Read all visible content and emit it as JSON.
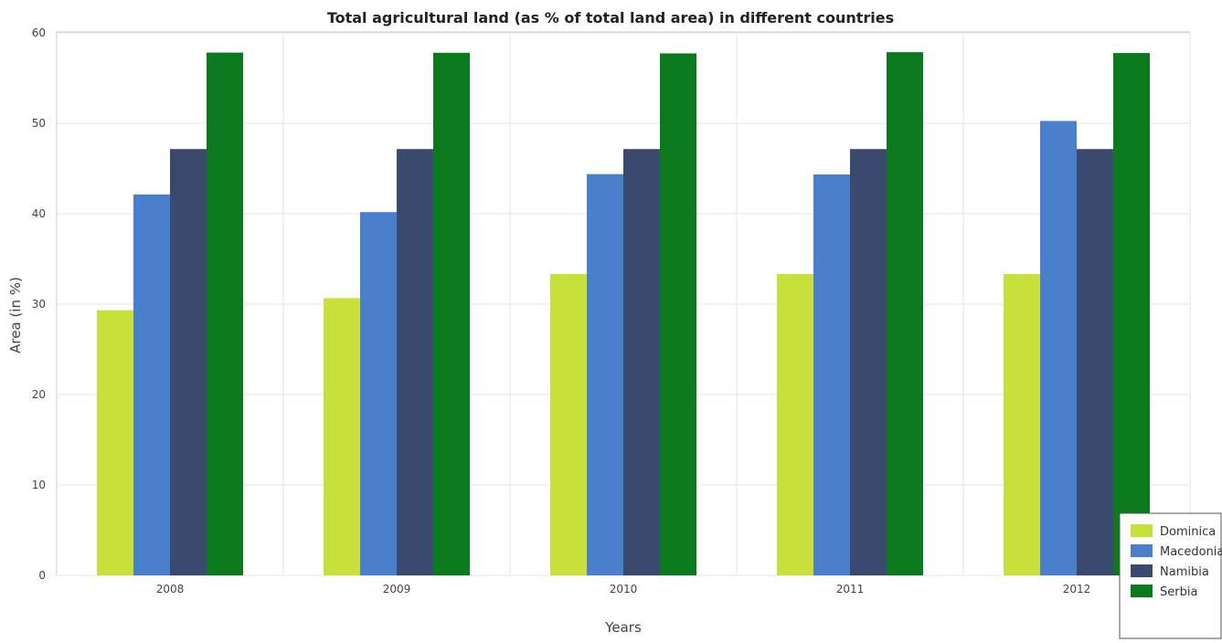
{
  "chart_data": {
    "type": "bar",
    "title": "Total agricultural land (as % of total land area) in different countries",
    "xlabel": "Years",
    "ylabel": "Area (in %)",
    "categories": [
      "2008",
      "2009",
      "2010",
      "2011",
      "2012"
    ],
    "ylim": [
      0,
      60
    ],
    "yticks": [
      0,
      10,
      20,
      30,
      40,
      50,
      60
    ],
    "grid": true,
    "legend_position": "bottom-right",
    "series": [
      {
        "name": "Dominica",
        "color": "#c9e03a",
        "values": [
          29.33,
          30.67,
          33.33,
          33.33,
          33.33
        ]
      },
      {
        "name": "Macedonia",
        "color": "#4a7fcc",
        "values": [
          42.13,
          40.18,
          44.38,
          44.34,
          50.26
        ]
      },
      {
        "name": "Namibia",
        "color": "#3a4a6e",
        "values": [
          47.15,
          47.15,
          47.15,
          47.15,
          47.15
        ]
      },
      {
        "name": "Serbia",
        "color": "#0b7a1c",
        "values": [
          57.82,
          57.8,
          57.73,
          57.87,
          57.77
        ]
      }
    ]
  }
}
